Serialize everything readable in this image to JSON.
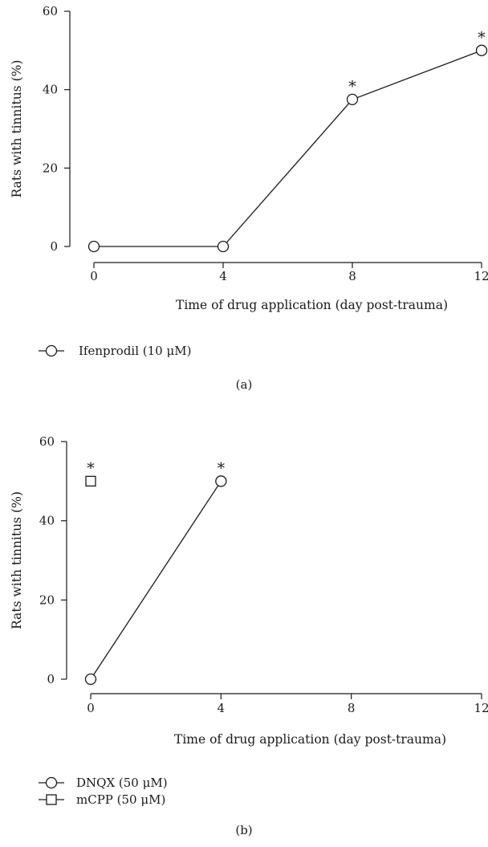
{
  "chart_data": [
    {
      "type": "line",
      "panel_label": "(a)",
      "xlabel": "Time of drug application (day post-trauma)",
      "ylabel": "Rats with tinnitus (%)",
      "x_ticks": [
        0,
        4,
        8,
        12
      ],
      "y_ticks": [
        0,
        20,
        40,
        60
      ],
      "xlim": [
        0,
        12
      ],
      "ylim": [
        0,
        60
      ],
      "grid": false,
      "legend_position": "bottom-left",
      "series": [
        {
          "name": "Ifenprodil (10 μM)",
          "marker": "circle",
          "connected": true,
          "x": [
            0,
            4,
            8,
            12
          ],
          "y": [
            0,
            0,
            37.5,
            50
          ],
          "significant": [
            false,
            false,
            true,
            true
          ]
        }
      ],
      "significance_marker": "*"
    },
    {
      "type": "line",
      "panel_label": "(b)",
      "xlabel": "Time of drug application (day post-trauma)",
      "ylabel": "Rats with tinnitus (%)",
      "x_ticks": [
        0,
        4,
        8,
        12
      ],
      "y_ticks": [
        0,
        20,
        40,
        60
      ],
      "xlim": [
        0,
        12
      ],
      "ylim": [
        0,
        60
      ],
      "grid": false,
      "legend_position": "bottom-left",
      "series": [
        {
          "name": "DNQX (50 μM)",
          "marker": "circle",
          "connected": true,
          "x": [
            0,
            4
          ],
          "y": [
            0,
            50
          ],
          "significant": [
            false,
            true
          ]
        },
        {
          "name": "mCPP (50 μM)",
          "marker": "square",
          "connected": false,
          "x": [
            0
          ],
          "y": [
            50
          ],
          "significant": [
            true
          ]
        }
      ],
      "significance_marker": "*"
    }
  ]
}
